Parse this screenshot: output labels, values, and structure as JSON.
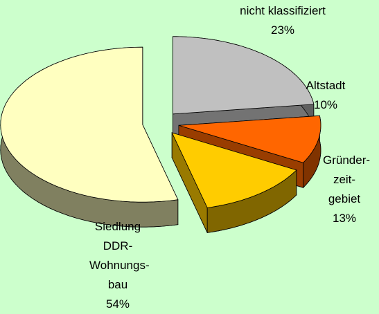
{
  "chart_data": {
    "type": "pie",
    "categories": [
      "nicht klassifiziert",
      "Altstadt",
      "Gründer-zeit-gebiet",
      "Siedlung DDR-Wohnungs-bau"
    ],
    "values": [
      23,
      10,
      13,
      54
    ],
    "value_labels": [
      "23%",
      "10%",
      "13%",
      "54%"
    ],
    "colors": [
      "#c0c0c0",
      "#ff6600",
      "#ffcc00",
      "#ffffc0"
    ]
  }
}
